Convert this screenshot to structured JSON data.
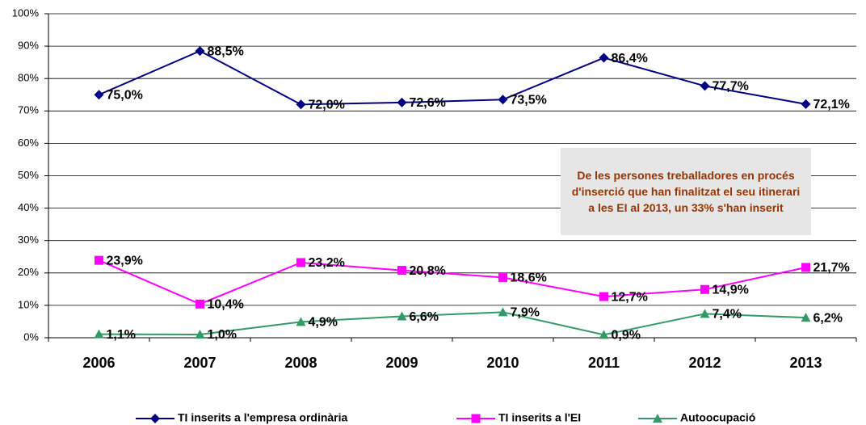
{
  "chart_data": {
    "type": "line",
    "categories": [
      "2006",
      "2007",
      "2008",
      "2009",
      "2010",
      "2011",
      "2012",
      "2013"
    ],
    "series": [
      {
        "name": "TI inserits a l'empresa ordinària",
        "color": "#000080",
        "marker": "diamond",
        "values": [
          75.0,
          88.5,
          72.0,
          72.6,
          73.5,
          86.4,
          77.7,
          72.1
        ],
        "value_labels": [
          "75,0%",
          "88,5%",
          "72,0%",
          "72,6%",
          "73,5%",
          "86,4%",
          "77,7%",
          "72,1%"
        ]
      },
      {
        "name": "TI inserits a l'EI",
        "color": "#ff00ff",
        "marker": "square",
        "values": [
          23.9,
          10.4,
          23.2,
          20.8,
          18.6,
          12.7,
          14.9,
          21.7
        ],
        "value_labels": [
          "23,9%",
          "10,4%",
          "23,2%",
          "20,8%",
          "18,6%",
          "12,7%",
          "14,9%",
          "21,7%"
        ]
      },
      {
        "name": "Autoocupació",
        "color": "#339966",
        "marker": "triangle",
        "values": [
          1.1,
          1.0,
          4.9,
          6.6,
          7.9,
          0.9,
          7.4,
          6.2
        ],
        "value_labels": [
          "1,1%",
          "1,0%",
          "4,9%",
          "6,6%",
          "7,9%",
          "0,9%",
          "7,4%",
          "6,2%"
        ]
      }
    ],
    "ylim": [
      0,
      100
    ],
    "yticks": [
      {
        "value": 0,
        "label": "0%"
      },
      {
        "value": 10,
        "label": "10%"
      },
      {
        "value": 20,
        "label": "20%"
      },
      {
        "value": 30,
        "label": "30%"
      },
      {
        "value": 40,
        "label": "40%"
      },
      {
        "value": 50,
        "label": "50%"
      },
      {
        "value": 60,
        "label": "60%"
      },
      {
        "value": 70,
        "label": "70%"
      },
      {
        "value": 80,
        "label": "80%"
      },
      {
        "value": 90,
        "label": "90%"
      },
      {
        "value": 100,
        "label": "100%"
      }
    ],
    "grid": true,
    "legend": "bottom",
    "annotation": "De les persones treballadores en procés d'inserció que han finalitzat el seu itinerari a les EI al 2013, un 33% s'han inserit"
  }
}
